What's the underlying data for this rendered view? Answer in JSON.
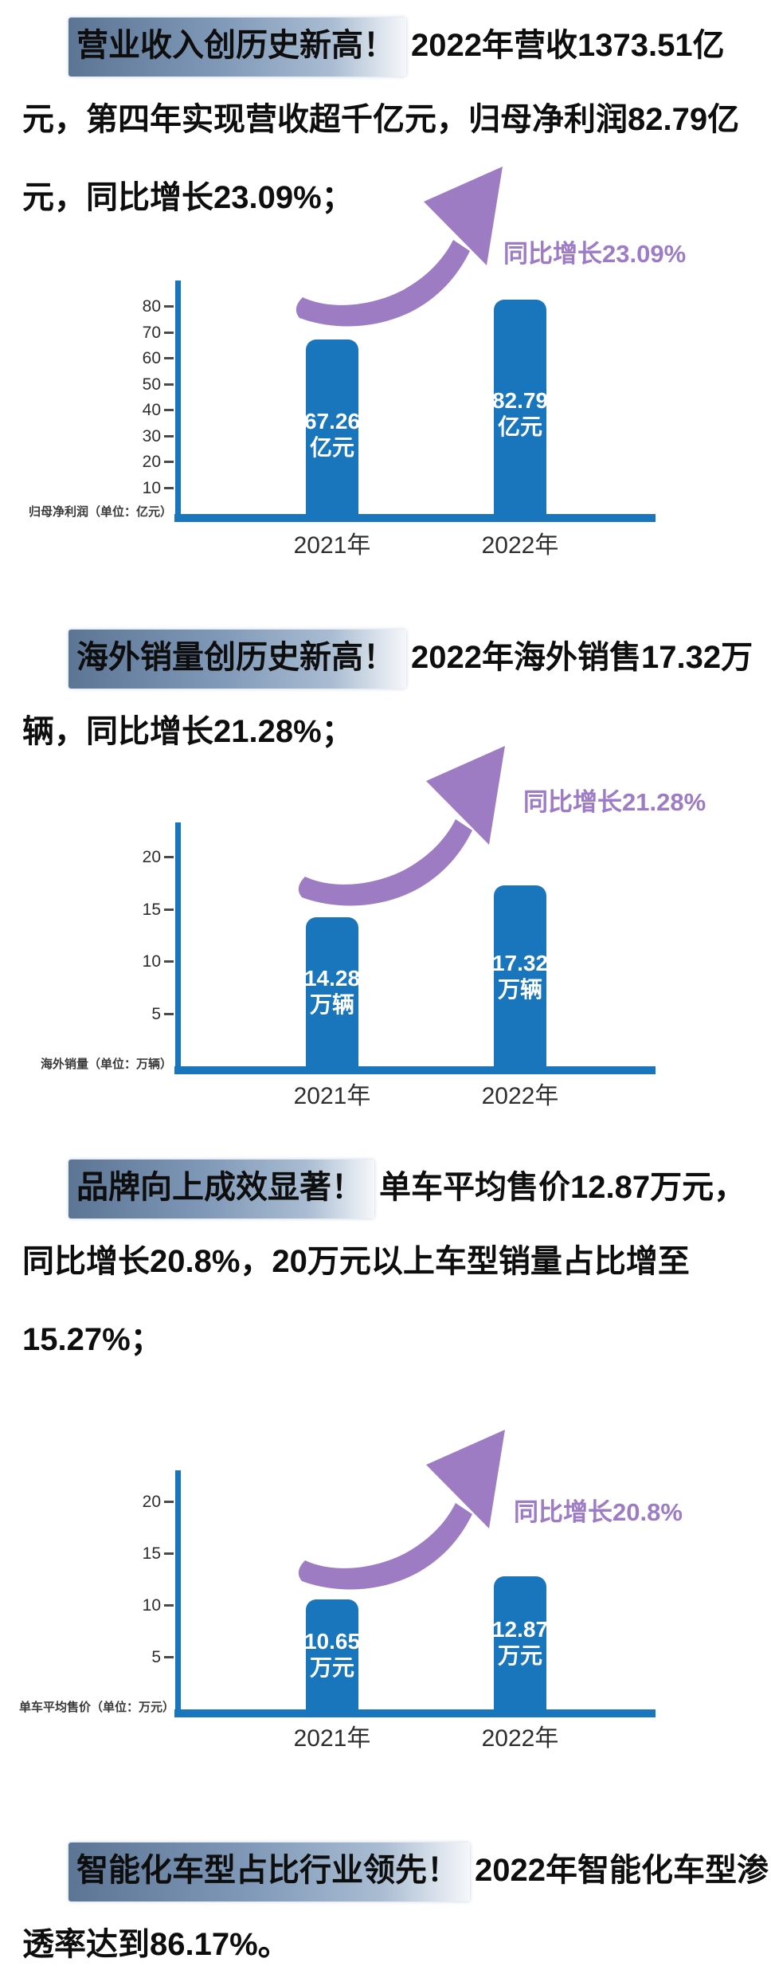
{
  "colors": {
    "bar_blue": "#1976bd",
    "arrow_purple": "#9d7cc3",
    "growth_purple": "#9d7bc5",
    "highlight_left": "#5c7595",
    "highlight_mid": "#8099b8",
    "highlight_right": "#a9bcd2",
    "headline_text": "#0e0e0e"
  },
  "text_blocks": [
    {
      "id": "revenue",
      "lines": [
        {
          "highlight": "营业收入创历史新高！",
          "rest": "2022年营收1373.51亿"
        },
        {
          "text": "元，第四年实现营收超千亿元，归母净利润82.79亿"
        },
        {
          "text": "元，同比增长23.09%；"
        }
      ]
    },
    {
      "id": "overseas-sales",
      "lines": [
        {
          "highlight": "海外销量创历史新高！",
          "rest": "2022年海外销售17.32万"
        },
        {
          "text": "辆，同比增长21.28%；"
        }
      ]
    },
    {
      "id": "brand-up",
      "lines": [
        {
          "highlight": "品牌向上成效显著！",
          "rest": "单车平均售价12.87万元，"
        },
        {
          "text": "同比增长20.8%，20万元以上车型销量占比增至"
        },
        {
          "text": "15.27%；"
        }
      ]
    },
    {
      "id": "intelligent",
      "lines": [
        {
          "highlight": "智能化车型占比行业领先！",
          "rest": "2022年智能化车型渗"
        },
        {
          "text": "透率达到86.17%。"
        }
      ]
    }
  ],
  "chart_data": [
    {
      "type": "bar",
      "categories": [
        "2021年",
        "2022年"
      ],
      "values": [
        67.26,
        82.79
      ],
      "unit": "亿元",
      "bar_labels": [
        [
          "67.26",
          "亿元"
        ],
        [
          "82.79",
          "亿元"
        ]
      ],
      "ylabel": "归母净利润（单位：亿元）",
      "y_ticks": [
        10,
        20,
        30,
        40,
        50,
        60,
        70,
        80
      ],
      "ylim": [
        0,
        88
      ],
      "growth_label": "同比增长23.09%",
      "grid": false,
      "legend_position": "none"
    },
    {
      "type": "bar",
      "categories": [
        "2021年",
        "2022年"
      ],
      "values": [
        14.28,
        17.32
      ],
      "unit": "万辆",
      "bar_labels": [
        [
          "14.28",
          "万辆"
        ],
        [
          "17.32",
          "万辆"
        ]
      ],
      "ylabel": "海外销量（单位：万辆）",
      "y_ticks": [
        5,
        10,
        15,
        20
      ],
      "ylim": [
        0,
        23
      ],
      "growth_label": "同比增长21.28%",
      "grid": false,
      "legend_position": "none"
    },
    {
      "type": "bar",
      "categories": [
        "2021年",
        "2022年"
      ],
      "values": [
        10.65,
        12.87
      ],
      "unit": "万元",
      "bar_labels": [
        [
          "10.65",
          "万元"
        ],
        [
          "12.87",
          "万元"
        ]
      ],
      "ylabel": "单车平均售价（单位：万元）",
      "y_ticks": [
        5,
        10,
        15,
        20
      ],
      "ylim": [
        0,
        24
      ],
      "growth_label": "同比增长20.8%",
      "grid": false,
      "legend_position": "none"
    }
  ]
}
